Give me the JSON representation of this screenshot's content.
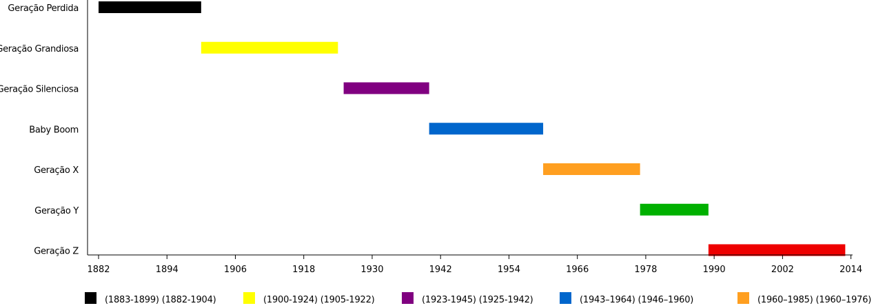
{
  "chart_data": {
    "type": "bar",
    "orientation": "horizontal-timeline",
    "xlim": [
      1880,
      2014
    ],
    "xticks": [
      1882,
      1894,
      1906,
      1918,
      1930,
      1942,
      1954,
      1966,
      1978,
      1990,
      2002,
      2014
    ],
    "grid": false,
    "legend_position": "bottom",
    "bars": [
      {
        "name": "Geração Perdida",
        "start": 1882,
        "end": 1900,
        "color": "#000000"
      },
      {
        "name": "Geração Grandiosa",
        "start": 1900,
        "end": 1924,
        "color": "#ffff00"
      },
      {
        "name": "Geração Silenciosa",
        "start": 1925,
        "end": 1940,
        "color": "#800080"
      },
      {
        "name": "Baby Boom",
        "start": 1940,
        "end": 1960,
        "color": "#0066cc"
      },
      {
        "name": "Geração X",
        "start": 1960,
        "end": 1977,
        "color": "#ff9f20"
      },
      {
        "name": "Geração Y",
        "start": 1977,
        "end": 1989,
        "color": "#00b000"
      },
      {
        "name": "Geração Z",
        "start": 1989,
        "end": 2013,
        "color": "#ee0000"
      }
    ],
    "legend": [
      {
        "label": "(1883-1899) (1882-1904)",
        "color": "#000000"
      },
      {
        "label": "(1900-1924) (1905-1922)",
        "color": "#ffff00"
      },
      {
        "label": "(1923-1945) (1925-1942)",
        "color": "#800080"
      },
      {
        "label": "(1943–1964) (1946–1960)",
        "color": "#0066cc"
      },
      {
        "label": "(1960–1985) (1960–1976)",
        "color": "#ff9f20"
      }
    ]
  }
}
